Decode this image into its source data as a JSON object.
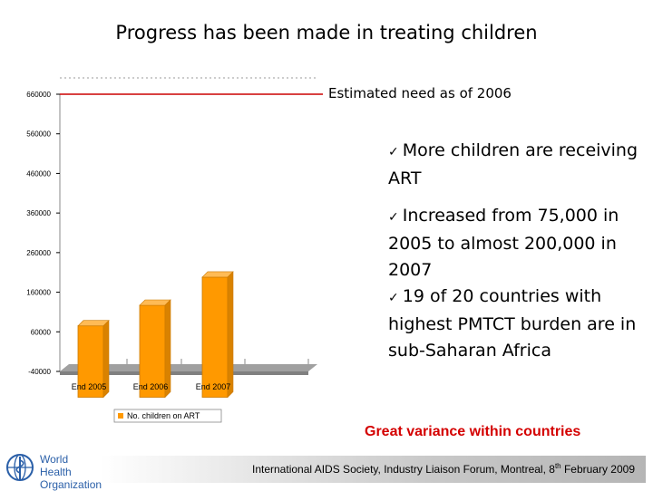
{
  "slide": {
    "title": "Progress has been made in treating children",
    "need_label": "Estimated need as of 2006",
    "bullets": [
      "More children are receiving ART",
      "Increased from 75,000 in 2005 to almost 200,000 in 2007",
      "19 of 20 countries with highest PMTCT burden are in sub-Saharan Africa"
    ],
    "check_glyph": "✓",
    "variance": "Great variance within countries",
    "footer_main": "International AIDS Society, Industry Liaison Forum, Montreal, 8",
    "footer_sup": "th",
    "footer_end": " February 2009",
    "logo_line1": "World Health",
    "logo_line2": "Organization"
  },
  "chart_data": {
    "type": "bar",
    "categories": [
      "End 2005",
      "End 2006",
      "End 2007"
    ],
    "series": [
      {
        "name": "No. children on ART",
        "values": [
          75000,
          127000,
          198000
        ],
        "color": "#ff9900"
      }
    ],
    "reference_line": {
      "value": 660000,
      "color": "#cc0000"
    },
    "yticks": [
      660000,
      560000,
      460000,
      360000,
      260000,
      160000,
      60000,
      -40000
    ],
    "ytick_labels": [
      "660000",
      "560000",
      "460000",
      "360000",
      "260000",
      "160000",
      "60000",
      "-40000"
    ],
    "ylim": [
      -40000,
      660000
    ],
    "legend_position": "bottom"
  }
}
